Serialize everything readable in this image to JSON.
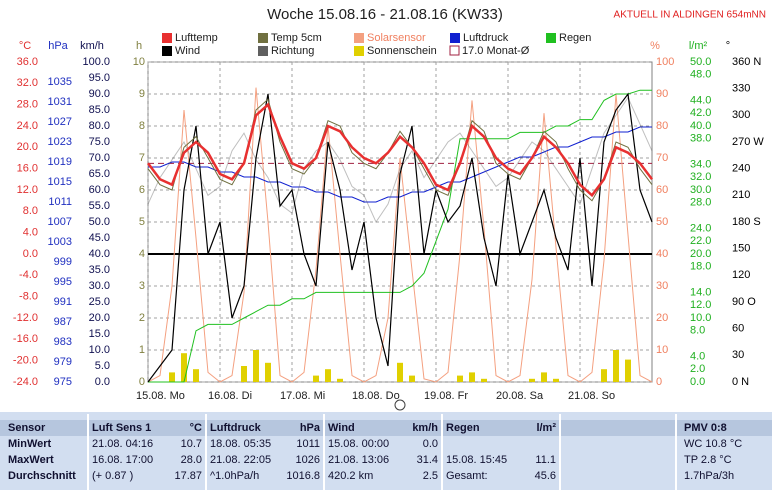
{
  "chart_data": {
    "type": "line",
    "title": "Woche 15.08.16 - 21.08.16 (KW33)",
    "subtitle": "AKTUELL IN ALDINGEN 654mNN",
    "x": [
      0,
      4,
      8,
      12,
      16,
      20,
      24,
      28,
      32,
      36,
      40,
      44,
      48,
      52,
      56,
      60,
      64,
      68,
      72,
      76,
      80,
      84,
      88,
      92,
      96,
      100,
      104,
      108,
      112,
      116,
      120,
      124,
      128,
      132,
      136,
      140,
      144,
      148,
      152,
      156,
      160,
      164,
      168
    ],
    "xlim": [
      0,
      168
    ],
    "xticks": [
      {
        "value": 0,
        "label": "15.08. Mo"
      },
      {
        "value": 24,
        "label": "16.08. Di"
      },
      {
        "value": 48,
        "label": "17.08. Mi"
      },
      {
        "value": 72,
        "label": "18.08. Do"
      },
      {
        "value": 96,
        "label": "19.08. Fr"
      },
      {
        "value": 120,
        "label": "20.08. Sa"
      },
      {
        "value": 144,
        "label": "21.08. So"
      }
    ],
    "y_label": "°C",
    "y_color": "#e03030",
    "ylim": [
      -24,
      36
    ],
    "yticks": [
      {
        "value": 36,
        "label": "36.0"
      },
      {
        "value": 32,
        "label": "32.0"
      },
      {
        "value": 28,
        "label": "28.0"
      },
      {
        "value": 24,
        "label": "24.0"
      },
      {
        "value": 20,
        "label": "20.0"
      },
      {
        "value": 16,
        "label": "16.0"
      },
      {
        "value": 12,
        "label": "12.0"
      },
      {
        "value": 8,
        "label": "8.0"
      },
      {
        "value": 4,
        "label": "4.0"
      },
      {
        "value": 0,
        "label": "0.0"
      },
      {
        "value": -4,
        "label": "-4.0"
      },
      {
        "value": -8,
        "label": "-8.0"
      },
      {
        "value": -12,
        "label": "-12.0"
      },
      {
        "value": -16,
        "label": "-16.0"
      },
      {
        "value": -20,
        "label": "-20.0"
      },
      {
        "value": -24,
        "label": "-24.0"
      }
    ],
    "y2_label": "hPa",
    "y2_color": "#2030c0",
    "y2lim": [
      975,
      1039
    ],
    "y2ticks": [
      1035,
      1031,
      1027,
      1023,
      1019,
      1015,
      1011,
      1007,
      1003,
      999,
      995,
      991,
      987,
      983,
      979,
      975
    ],
    "y3_label": "km/h",
    "y3_color": "#101050",
    "y3lim": [
      0,
      100
    ],
    "y3ticks": [
      {
        "value": 100,
        "label": "100.0"
      },
      {
        "value": 95,
        "label": "95.0"
      },
      {
        "value": 90,
        "label": "90.0"
      },
      {
        "value": 85,
        "label": "85.0"
      },
      {
        "value": 80,
        "label": "80.0"
      },
      {
        "value": 75,
        "label": "75.0"
      },
      {
        "value": 70,
        "label": "70.0"
      },
      {
        "value": 65,
        "label": "65.0"
      },
      {
        "value": 60,
        "label": "60.0"
      },
      {
        "value": 55,
        "label": "55.0"
      },
      {
        "value": 50,
        "label": "50.0"
      },
      {
        "value": 45,
        "label": "45.0"
      },
      {
        "value": 40,
        "label": "40.0"
      },
      {
        "value": 35,
        "label": "35.0"
      },
      {
        "value": 30,
        "label": "30.0"
      },
      {
        "value": 25,
        "label": "25.0"
      },
      {
        "value": 20,
        "label": "20.0"
      },
      {
        "value": 15,
        "label": "15.0"
      },
      {
        "value": 10,
        "label": "10.0"
      },
      {
        "value": 5,
        "label": "5.0"
      },
      {
        "value": 0,
        "label": "0.0"
      }
    ],
    "y4_label": "h",
    "y4_color": "#808040",
    "y4lim": [
      0,
      10
    ],
    "y4ticks": [
      10,
      9,
      8,
      7,
      6,
      5,
      4,
      3,
      2,
      1,
      0
    ],
    "y5_label": "%",
    "y5_color": "#f08060",
    "y5lim": [
      0,
      100
    ],
    "y5ticks": [
      100,
      90,
      80,
      70,
      60,
      50,
      40,
      30,
      20,
      10,
      0
    ],
    "y6_label": "l/m²",
    "y6_color": "#20b020",
    "y6lim": [
      0,
      50
    ],
    "y6ticks": [
      {
        "value": 50,
        "label": "50.0"
      },
      {
        "value": 48,
        "label": "48.0"
      },
      {
        "value": 44,
        "label": "44.0"
      },
      {
        "value": 42,
        "label": "42.0"
      },
      {
        "value": 40,
        "label": "40.0"
      },
      {
        "value": 38,
        "label": "38.0"
      },
      {
        "value": 34,
        "label": "34.0"
      },
      {
        "value": 32,
        "label": "32.0"
      },
      {
        "value": 30,
        "label": "30.0"
      },
      {
        "value": 28,
        "label": "28.0"
      },
      {
        "value": 24,
        "label": "24.0"
      },
      {
        "value": 22,
        "label": "22.0"
      },
      {
        "value": 20,
        "label": "20.0"
      },
      {
        "value": 18,
        "label": "18.0"
      },
      {
        "value": 14,
        "label": "14.0"
      },
      {
        "value": 12,
        "label": "12.0"
      },
      {
        "value": 10,
        "label": "10.0"
      },
      {
        "value": 8,
        "label": "8.0"
      },
      {
        "value": 4,
        "label": "4.0"
      },
      {
        "value": 2,
        "label": "2.0"
      },
      {
        "value": 0,
        "label": "0.0"
      }
    ],
    "y7_label": "°",
    "y7_color": "#000000",
    "y7lim": [
      0,
      360
    ],
    "y7ticks": [
      {
        "value": 360,
        "label": "360 N"
      },
      330,
      300,
      {
        "value": 270,
        "label": "270 W"
      },
      240,
      210,
      {
        "value": 180,
        "label": "180 S"
      },
      150,
      120,
      {
        "value": 90,
        "label": "90  O"
      },
      60,
      30,
      {
        "value": 0,
        "label": "0   N"
      }
    ],
    "grid": true,
    "series": [
      {
        "name": "Solarsensor",
        "color": "#f4a080",
        "axis": "y5",
        "values": [
          0,
          2,
          30,
          85,
          45,
          3,
          0,
          2,
          28,
          92,
          50,
          2,
          0,
          3,
          35,
          80,
          40,
          2,
          0,
          2,
          20,
          70,
          35,
          1,
          0,
          3,
          40,
          88,
          48,
          2,
          0,
          2,
          32,
          84,
          42,
          2,
          0,
          3,
          38,
          90,
          46,
          2,
          0
        ]
      },
      {
        "name": "Sonnenschein",
        "color": "#e0d000",
        "axis": "y4",
        "kind": "bar",
        "values": [
          0,
          0,
          0.3,
          0.9,
          0.4,
          0,
          0,
          0,
          0.5,
          1,
          0.6,
          0,
          0,
          0,
          0.2,
          0.4,
          0.1,
          0,
          0,
          0,
          0,
          0.6,
          0.2,
          0,
          0,
          0,
          0.2,
          0.3,
          0.1,
          0,
          0,
          0,
          0.1,
          0.3,
          0.1,
          0,
          0,
          0,
          0.4,
          1,
          0.7,
          0,
          0
        ]
      },
      {
        "name": "Regen",
        "color": "#20c020",
        "axis": "y6",
        "values": [
          0,
          0,
          0,
          0,
          8,
          9,
          9,
          9,
          10,
          11,
          12,
          12,
          13,
          13,
          14,
          14,
          14,
          14,
          14,
          14,
          14,
          14,
          15,
          17,
          22,
          27,
          38,
          38,
          38,
          38,
          38,
          39,
          39,
          39,
          40,
          40,
          41,
          41,
          44,
          45,
          45,
          45.6,
          45.6
        ]
      },
      {
        "name": "Luftdruck",
        "color": "#1020d0",
        "axis": "y2",
        "values": [
          1018,
          1018,
          1019,
          1019,
          1018,
          1018,
          1017,
          1017,
          1016,
          1016,
          1015,
          1015,
          1014,
          1014,
          1013,
          1013,
          1012,
          1012,
          1011,
          1011,
          1012,
          1012,
          1013,
          1013,
          1014,
          1015,
          1015,
          1016,
          1017,
          1018,
          1019,
          1020,
          1020,
          1021,
          1022,
          1022,
          1023,
          1024,
          1024,
          1025,
          1025,
          1026,
          1026
        ]
      },
      {
        "name": "Richtung",
        "color": "#606060",
        "axis": "y7",
        "values": [
          200,
          230,
          250,
          270,
          240,
          210,
          220,
          260,
          280,
          250,
          230,
          200,
          190,
          240,
          260,
          270,
          250,
          220,
          210,
          180,
          200,
          240,
          260,
          230,
          250,
          270,
          280,
          260,
          240,
          220,
          230,
          250,
          270,
          260,
          240,
          220,
          200,
          240,
          280,
          300,
          320,
          290,
          260
        ]
      },
      {
        "name": "Wind",
        "color": "#000000",
        "axis": "y3",
        "values": [
          0,
          5,
          10,
          60,
          80,
          40,
          50,
          20,
          30,
          70,
          90,
          55,
          60,
          40,
          30,
          75,
          60,
          35,
          50,
          20,
          5,
          65,
          80,
          40,
          60,
          50,
          55,
          70,
          45,
          30,
          65,
          40,
          50,
          60,
          45,
          35,
          70,
          30,
          75,
          85,
          90,
          60,
          50
        ]
      },
      {
        "name": "Temp 5cm",
        "color": "#707040",
        "axis": "y",
        "values": [
          16,
          13,
          12,
          20,
          22,
          18,
          14,
          13,
          17,
          27,
          29,
          21,
          16,
          15,
          18,
          25,
          24,
          19,
          17,
          16,
          19,
          23,
          20,
          16,
          12,
          11,
          17,
          25,
          23,
          17,
          15,
          14,
          18,
          23,
          21,
          16,
          12,
          10,
          14,
          21,
          20,
          16,
          13
        ]
      },
      {
        "name": "Lufttemp",
        "color": "#e83030",
        "axis": "y",
        "values": [
          17,
          14,
          13,
          19,
          21,
          19,
          15,
          14,
          17,
          26,
          28,
          22,
          17,
          16,
          18,
          24,
          23,
          20,
          18,
          17,
          19,
          22,
          20,
          17,
          13,
          12,
          17,
          24,
          22,
          18,
          16,
          15,
          18,
          22,
          20,
          17,
          13,
          11,
          14,
          20,
          19,
          17,
          14
        ]
      }
    ],
    "legend_order": [
      "Lufttemp",
      "Temp 5cm",
      "Solarsensor",
      "Luftdruck",
      "Regen",
      "Wind",
      "Richtung",
      "Sonnenschein"
    ],
    "monthly_avg": {
      "name": "17.0 Monat-Ø",
      "value": 17.0,
      "axis": "y",
      "color": "#a02040"
    }
  },
  "stats": {
    "row_labels": [
      "Sensor",
      "MinWert",
      "MaxWert",
      "Durchschnitt"
    ],
    "panels": [
      {
        "title": "Luft Sens 1",
        "unit": "°C",
        "rows": [
          [
            "21.08.  04:16",
            "10.7"
          ],
          [
            "16.08.  17:00",
            "28.0"
          ],
          [
            "(+ 0.87 )",
            "17.87"
          ]
        ]
      },
      {
        "title": "Luftdruck",
        "unit": "hPa",
        "rows": [
          [
            "18.08.  05:35",
            "1011"
          ],
          [
            "21.08.  22:05",
            "1026"
          ],
          [
            "^1.0hPa/h",
            "1016.8"
          ]
        ]
      },
      {
        "title": "Wind",
        "unit": "km/h",
        "rows": [
          [
            "15.08.  00:00",
            "0.0"
          ],
          [
            "21.08.  13:06",
            "31.4"
          ],
          [
            "420.2 km",
            "2.5"
          ]
        ]
      },
      {
        "title": "Regen",
        "unit": "l/m²",
        "rows": [
          null,
          [
            "15.08.  15:45",
            "11.1"
          ],
          [
            "Gesamt:",
            "45.6"
          ]
        ]
      }
    ],
    "pmv": {
      "title": "PMV 0:8",
      "lines": [
        "WC 10.8 °C",
        "TP 2.8 °C",
        "1.7hPa/3h"
      ]
    }
  }
}
